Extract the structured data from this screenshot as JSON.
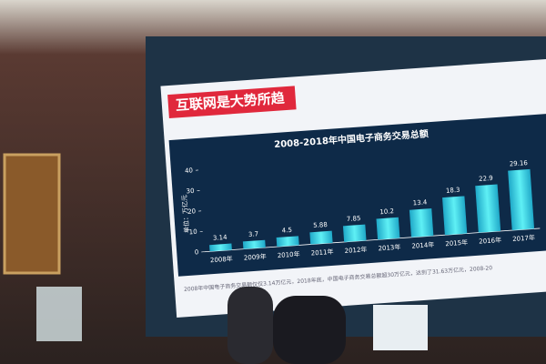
{
  "header": {
    "title": "互联网是大势所趋"
  },
  "chart_data": {
    "type": "bar",
    "title": "2008-2018年中国电子商务交易总额",
    "y_label": "单位：万亿元",
    "categories": [
      "2008年",
      "2009年",
      "2010年",
      "2011年",
      "2012年",
      "2013年",
      "2014年",
      "2015年",
      "2016年",
      "2017年"
    ],
    "values": [
      3.14,
      3.7,
      4.5,
      5.88,
      7.85,
      10.2,
      13.4,
      18.3,
      22.9,
      29.16
    ],
    "color": "#2fd0e0",
    "ylim": [
      0,
      40
    ],
    "yticks": [
      0,
      10,
      20,
      30,
      40
    ]
  },
  "footnote": "2008年中国电子商务交易额仅仅3.14万亿元，2018年底，中国电子商务交易总额超30万亿元，达到了31.63万亿元，2008-20"
}
